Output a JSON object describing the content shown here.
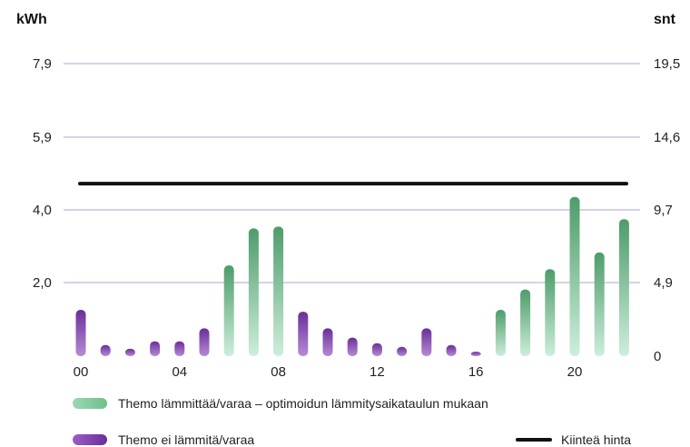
{
  "chart_data": {
    "type": "bar",
    "left_axis_unit": "kWh",
    "right_axis_unit": "snt",
    "left_ticks": [
      "7,9",
      "5,9",
      "4,0",
      "2,0"
    ],
    "right_ticks": [
      "19,5",
      "14,6",
      "9,7",
      "4,9",
      "0"
    ],
    "x_tick_labels": [
      "00",
      "04",
      "08",
      "12",
      "16",
      "20"
    ],
    "x_tick_hours": [
      0,
      4,
      8,
      12,
      16,
      20
    ],
    "ylim_kwh": [
      0,
      7.9
    ],
    "hours": [
      0,
      1,
      2,
      3,
      4,
      5,
      6,
      7,
      8,
      9,
      10,
      11,
      12,
      13,
      14,
      15,
      16,
      17,
      18,
      19,
      20,
      21,
      22
    ],
    "values_kwh": [
      1.25,
      0.3,
      0.2,
      0.4,
      0.4,
      0.75,
      2.45,
      3.45,
      3.5,
      1.2,
      0.75,
      0.5,
      0.35,
      0.25,
      0.75,
      0.3,
      0.12,
      1.25,
      1.8,
      2.35,
      4.3,
      2.8,
      3.7
    ],
    "heating": [
      false,
      false,
      false,
      false,
      false,
      false,
      true,
      true,
      true,
      false,
      false,
      false,
      false,
      false,
      false,
      false,
      false,
      true,
      true,
      true,
      true,
      true,
      true
    ],
    "fixed_price_snt": 11.5,
    "grid": true,
    "series": [
      {
        "name": "Themo lämmittää/varaa – optimoidun lämmitysaikataulun mukaan",
        "color": "#6fbf8c"
      },
      {
        "name": "Themo ei lämmitä/varaa",
        "color": "#7b3fa7"
      },
      {
        "name": "Kiinteä hinta",
        "color": "#111111"
      }
    ]
  },
  "legend": {
    "heating_label": "Themo lämmittää/varaa – optimoidun lämmitysaikataulun mukaan",
    "not_heating_label": "Themo ei lämmitä/varaa",
    "fixed_price_label": "Kiinteä hinta"
  }
}
